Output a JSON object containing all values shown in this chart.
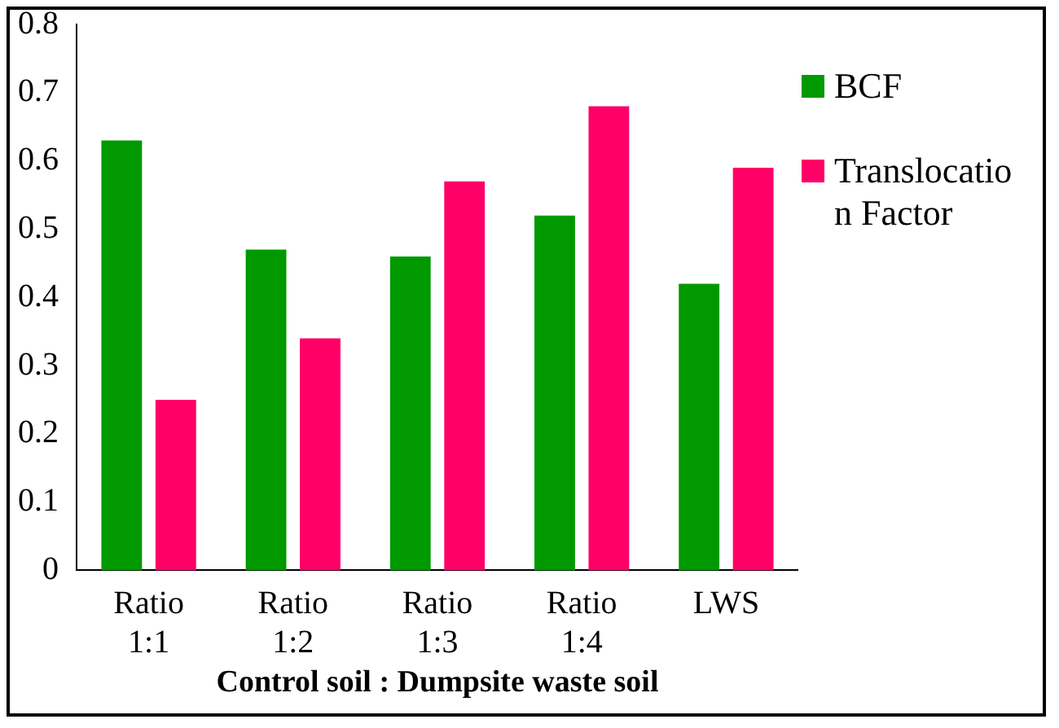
{
  "chart_data": {
    "type": "bar",
    "xlabel": "Control soil : Dumpsite waste soil",
    "categories": [
      "Ratio 1:1",
      "Ratio 1:2",
      "Ratio 1:3",
      "Ratio 1:4",
      "LWS"
    ],
    "series": [
      {
        "name": "BCF",
        "color": "#009900",
        "values": [
          0.63,
          0.47,
          0.46,
          0.52,
          0.42
        ]
      },
      {
        "name": "Translocation Factor",
        "color": "#ff0066",
        "values": [
          0.25,
          0.34,
          0.57,
          0.68,
          0.59
        ]
      }
    ],
    "ylim": [
      0,
      0.8
    ],
    "yticks": [
      0,
      0.1,
      0.2,
      0.3,
      0.4,
      0.5,
      0.6,
      0.7,
      0.8
    ],
    "grid": false,
    "legend": "right"
  }
}
